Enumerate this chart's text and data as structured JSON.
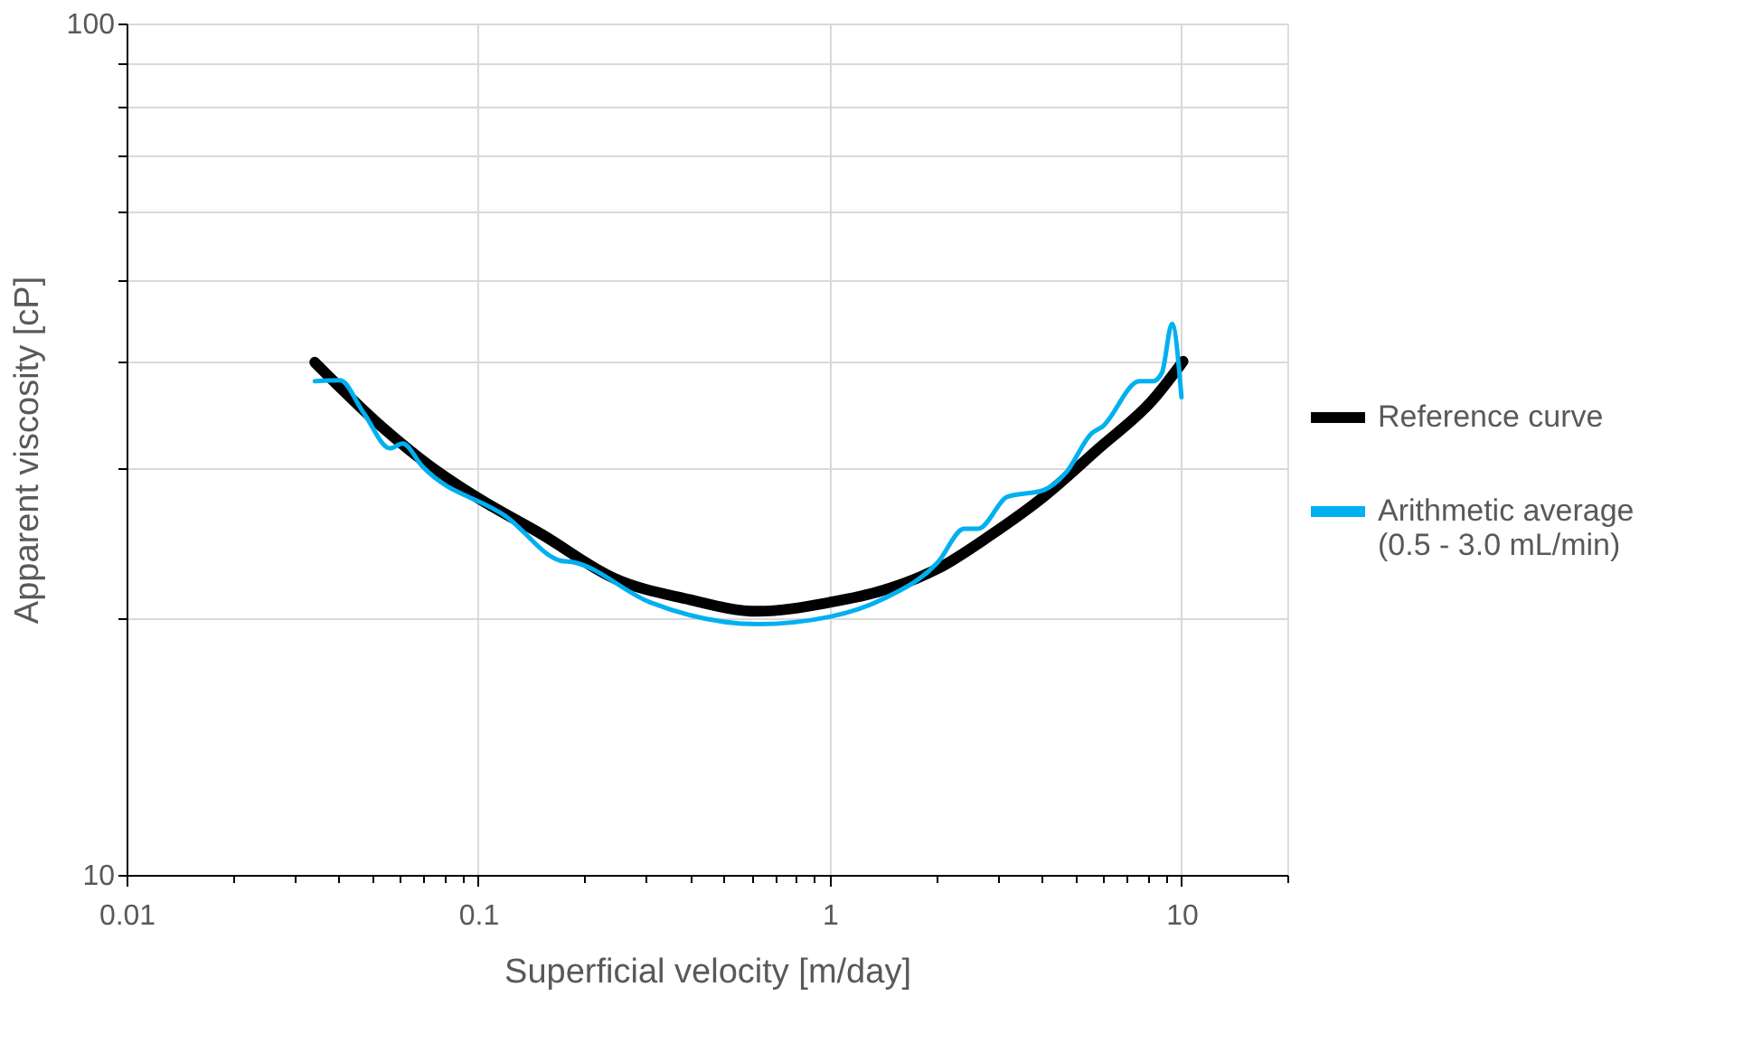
{
  "chart_data": {
    "type": "line",
    "xlabel": "Superficial velocity [m/day]",
    "ylabel": "Apparent viscosity [cP]",
    "log": "xy",
    "grid": true,
    "legend": "right",
    "marker": "none",
    "line_style": "solid",
    "xlim": [
      0.01,
      20
    ],
    "ylim": [
      10,
      100
    ],
    "xticks": [
      0.01,
      {
        "value": 0.02,
        "label": null
      },
      {
        "value": 0.03,
        "label": null
      },
      {
        "value": 0.04,
        "label": null
      },
      {
        "value": 0.05,
        "label": null
      },
      {
        "value": 0.06,
        "label": null
      },
      {
        "value": 0.07,
        "label": null
      },
      {
        "value": 0.08,
        "label": null
      },
      {
        "value": 0.09,
        "label": null
      },
      0.1,
      {
        "value": 0.2,
        "label": null
      },
      {
        "value": 0.3,
        "label": null
      },
      {
        "value": 0.4,
        "label": null
      },
      {
        "value": 0.5,
        "label": null
      },
      {
        "value": 0.6,
        "label": null
      },
      {
        "value": 0.7,
        "label": null
      },
      {
        "value": 0.8,
        "label": null
      },
      {
        "value": 0.9,
        "label": null
      },
      1,
      {
        "value": 2,
        "label": null
      },
      {
        "value": 3,
        "label": null
      },
      {
        "value": 4,
        "label": null
      },
      {
        "value": 5,
        "label": null
      },
      {
        "value": 6,
        "label": null
      },
      {
        "value": 7,
        "label": null
      },
      {
        "value": 8,
        "label": null
      },
      {
        "value": 9,
        "label": null
      },
      10,
      {
        "value": 20,
        "label": null
      }
    ],
    "yticks": [
      10,
      {
        "value": 20,
        "label": null
      },
      {
        "value": 30,
        "label": null
      },
      {
        "value": 40,
        "label": null
      },
      {
        "value": 50,
        "label": null
      },
      {
        "value": 60,
        "label": null
      },
      {
        "value": 70,
        "label": null
      },
      {
        "value": 80,
        "label": null
      },
      {
        "value": 90,
        "label": null
      },
      100
    ],
    "series": [
      {
        "name": "Reference curve",
        "color": "#000000",
        "x": [
          0.0343,
          0.0532,
          0.0755,
          0.1,
          0.152,
          0.244,
          0.39,
          0.623,
          1.0,
          1.42,
          2.03,
          2.88,
          4.05,
          5.82,
          8.27,
          10.1
        ],
        "values": [
          40.0,
          33.6,
          29.9,
          27.7,
          25.1,
          22.3,
          21.1,
          20.4,
          20.9,
          21.6,
          22.9,
          25.1,
          27.8,
          31.7,
          36.1,
          40.1
        ]
      },
      {
        "name": "Arithmetic average\n(0.5 - 3.0 mL/min)",
        "color": "#00b0f0",
        "x": [
          0.0343,
          0.0405,
          0.0472,
          0.0562,
          0.061,
          0.0693,
          0.121,
          0.171,
          0.186,
          0.308,
          0.623,
          1.0,
          1.42,
          2.03,
          2.41,
          2.64,
          3.2,
          4.05,
          4.7,
          5.55,
          5.95,
          7.6,
          8.3,
          8.8,
          9.4,
          10.0
        ],
        "values": [
          38.0,
          38.1,
          34.9,
          31.7,
          32.1,
          30.2,
          26.3,
          23.4,
          23.3,
          20.9,
          19.7,
          20.1,
          21.1,
          23.3,
          25.5,
          25.5,
          27.8,
          28.3,
          29.7,
          33.0,
          33.6,
          38.0,
          38.0,
          38.9,
          44.4,
          36.4
        ]
      }
    ]
  }
}
